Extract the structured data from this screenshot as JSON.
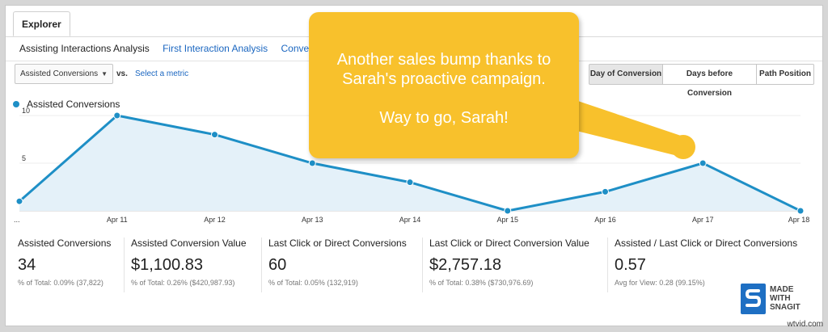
{
  "tabs": {
    "explorer": "Explorer"
  },
  "subnav": [
    {
      "label": "Assisting Interactions Analysis",
      "active": true
    },
    {
      "label": "First Interaction Analysis",
      "active": false
    },
    {
      "label": "Conversio",
      "active": false
    }
  ],
  "controls": {
    "metric_select": "Assisted Conversions",
    "vs": "vs.",
    "select_metric": "Select a metric",
    "segments": [
      "Day of Conversion",
      "Days before Conversion",
      "Path Position"
    ]
  },
  "legend": {
    "label": "Assisted Conversions"
  },
  "chart_data": {
    "type": "area",
    "x": [
      "...",
      "Apr 11",
      "Apr 12",
      "Apr 13",
      "Apr 14",
      "Apr 15",
      "Apr 16",
      "Apr 17",
      "Apr 18"
    ],
    "tick_labels": [
      "...",
      "Apr 11",
      "Apr 12",
      "Apr 13",
      "Apr 14",
      "Apr 15",
      "Apr 16",
      "Apr 17",
      "Apr 18"
    ],
    "series": [
      {
        "name": "Assisted Conversions",
        "values": [
          1,
          10,
          8,
          5,
          3,
          0,
          2,
          5,
          0
        ]
      }
    ],
    "ylim": [
      0,
      10
    ],
    "y_ticks": [
      5,
      10
    ],
    "color": "#1e8fc6",
    "fill": "#e4f1f9"
  },
  "summary": [
    {
      "title": "Assisted Conversions",
      "value": "34",
      "sub": "% of Total: 0.09% (37,822)"
    },
    {
      "title": "Assisted Conversion Value",
      "value": "$1,100.83",
      "sub": "% of Total: 0.26% ($420,987.93)"
    },
    {
      "title": "Last Click or Direct Conversions",
      "value": "60",
      "sub": "% of Total: 0.05% (132,919)"
    },
    {
      "title": "Last Click or Direct Conversion Value",
      "value": "$2,757.18",
      "sub": "% of Total: 0.38% ($730,976.69)"
    },
    {
      "title": "Assisted / Last Click or Direct Conversions",
      "value": "0.57",
      "sub": "Avg for View: 0.28 (99.15%)"
    }
  ],
  "callout": {
    "line1": "Another sales bump thanks to",
    "line2": "Sarah's proactive campaign.",
    "line3": "Way to go, Sarah!",
    "color": "#f8c12c"
  },
  "badge": {
    "line1": "MADE",
    "line2": "WITH",
    "line3": "SNAGIT"
  },
  "watermark": "wtvid.com"
}
